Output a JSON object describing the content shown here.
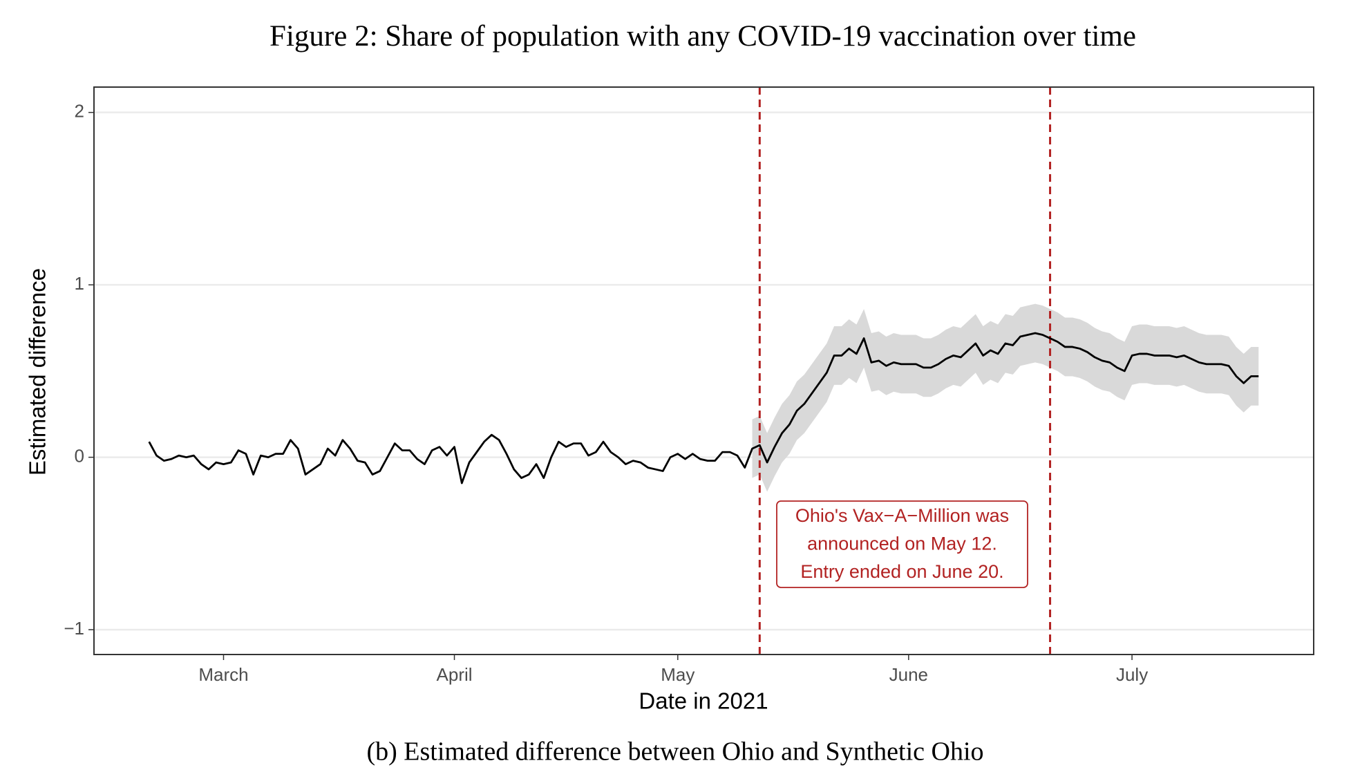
{
  "chart_data": {
    "type": "line",
    "title": "Figure 2: Share of population with any COVID-19 vaccination over time",
    "caption": "(b) Estimated difference between Ohio and Synthetic Ohio",
    "xlabel": "Date in 2021",
    "ylabel": "Estimated difference",
    "xlim": [
      42.6,
      206.4
    ],
    "ylim": [
      -1.144,
      2.147
    ],
    "xticks": [
      {
        "value": 60,
        "label": "March"
      },
      {
        "value": 91,
        "label": "April"
      },
      {
        "value": 121,
        "label": "May"
      },
      {
        "value": 152,
        "label": "June"
      },
      {
        "value": 182,
        "label": "July"
      }
    ],
    "yticks": [
      {
        "value": -1,
        "label": "−1"
      },
      0,
      1,
      2
    ],
    "grid": true,
    "color": "#000000",
    "band_color": "#d9d9d9",
    "vlines": [
      132,
      171
    ],
    "vline_color": "#b22222",
    "annotation": [
      "Ohio's Vax−A−Million was",
      "announced on May 12.",
      "Entry ended on June 20."
    ],
    "x": [
      50,
      51,
      52,
      53,
      54,
      55,
      56,
      57,
      58,
      59,
      60,
      61,
      62,
      63,
      64,
      65,
      66,
      67,
      68,
      69,
      70,
      71,
      72,
      73,
      74,
      75,
      76,
      77,
      78,
      79,
      80,
      81,
      82,
      83,
      84,
      85,
      86,
      87,
      88,
      89,
      90,
      91,
      92,
      93,
      94,
      95,
      96,
      97,
      98,
      99,
      100,
      101,
      102,
      103,
      104,
      105,
      106,
      107,
      108,
      109,
      110,
      111,
      112,
      113,
      114,
      115,
      116,
      117,
      118,
      119,
      120,
      121,
      122,
      123,
      124,
      125,
      126,
      127,
      128,
      129,
      130,
      131,
      132,
      133,
      134,
      135,
      136,
      137,
      138,
      139,
      140,
      141,
      142,
      143,
      144,
      145,
      146,
      147,
      148,
      149,
      150,
      151,
      152,
      153,
      154,
      155,
      156,
      157,
      158,
      159,
      160,
      161,
      162,
      163,
      164,
      165,
      166,
      167,
      168,
      169,
      170,
      171,
      172,
      173,
      174,
      175,
      176,
      177,
      178,
      179,
      180,
      181,
      182,
      183,
      184,
      185,
      186,
      187,
      188,
      189,
      190,
      191,
      192,
      193,
      194,
      195,
      196,
      197,
      198,
      199
    ],
    "values": [
      0.09,
      0.01,
      -0.02,
      -0.01,
      0.01,
      0.0,
      0.01,
      -0.04,
      -0.07,
      -0.03,
      -0.04,
      -0.03,
      0.04,
      0.02,
      -0.1,
      0.01,
      0.0,
      0.02,
      0.02,
      0.1,
      0.05,
      -0.1,
      -0.07,
      -0.04,
      0.05,
      0.01,
      0.1,
      0.05,
      -0.02,
      -0.03,
      -0.1,
      -0.08,
      0.0,
      0.08,
      0.04,
      0.04,
      -0.01,
      -0.04,
      0.04,
      0.06,
      0.01,
      0.06,
      -0.15,
      -0.03,
      0.03,
      0.09,
      0.13,
      0.1,
      0.02,
      -0.07,
      -0.12,
      -0.1,
      -0.04,
      -0.12,
      0.0,
      0.09,
      0.06,
      0.08,
      0.08,
      0.01,
      0.03,
      0.09,
      0.03,
      0.0,
      -0.04,
      -0.02,
      -0.03,
      -0.06,
      -0.07,
      -0.08,
      0.0,
      0.02,
      -0.01,
      0.02,
      -0.01,
      -0.02,
      -0.02,
      0.03,
      0.03,
      0.01,
      -0.06,
      0.05,
      0.07,
      -0.03,
      0.06,
      0.14,
      0.19,
      0.27,
      0.31,
      0.37,
      0.43,
      0.49,
      0.59,
      0.59,
      0.63,
      0.6,
      0.69,
      0.55,
      0.56,
      0.53,
      0.55,
      0.54,
      0.54,
      0.54,
      0.52,
      0.52,
      0.54,
      0.57,
      0.59,
      0.58,
      0.62,
      0.66,
      0.59,
      0.62,
      0.6,
      0.66,
      0.65,
      0.7,
      0.71,
      0.72,
      0.71,
      0.69,
      0.67,
      0.64,
      0.64,
      0.63,
      0.61,
      0.58,
      0.56,
      0.55,
      0.52,
      0.5,
      0.59,
      0.6,
      0.6,
      0.59,
      0.59,
      0.59,
      0.58,
      0.59,
      0.57,
      0.55,
      0.54,
      0.54,
      0.54,
      0.53,
      0.47,
      0.43,
      0.47,
      0.47
    ],
    "lower": [
      null,
      null,
      null,
      null,
      null,
      null,
      null,
      null,
      null,
      null,
      null,
      null,
      null,
      null,
      null,
      null,
      null,
      null,
      null,
      null,
      null,
      null,
      null,
      null,
      null,
      null,
      null,
      null,
      null,
      null,
      null,
      null,
      null,
      null,
      null,
      null,
      null,
      null,
      null,
      null,
      null,
      null,
      null,
      null,
      null,
      null,
      null,
      null,
      null,
      null,
      null,
      null,
      null,
      null,
      null,
      null,
      null,
      null,
      null,
      null,
      null,
      null,
      null,
      null,
      null,
      null,
      null,
      null,
      null,
      null,
      null,
      null,
      null,
      null,
      null,
      null,
      null,
      null,
      null,
      null,
      null,
      -0.12,
      -0.1,
      -0.2,
      -0.11,
      -0.03,
      0.02,
      0.1,
      0.14,
      0.2,
      0.26,
      0.32,
      0.42,
      0.42,
      0.46,
      0.43,
      0.52,
      0.38,
      0.39,
      0.36,
      0.38,
      0.37,
      0.37,
      0.37,
      0.35,
      0.35,
      0.37,
      0.4,
      0.42,
      0.41,
      0.45,
      0.49,
      0.42,
      0.45,
      0.43,
      0.49,
      0.48,
      0.53,
      0.54,
      0.55,
      0.54,
      0.52,
      0.5,
      0.47,
      0.47,
      0.46,
      0.44,
      0.41,
      0.39,
      0.38,
      0.35,
      0.33,
      0.42,
      0.43,
      0.43,
      0.42,
      0.42,
      0.42,
      0.41,
      0.42,
      0.4,
      0.38,
      0.37,
      0.37,
      0.37,
      0.36,
      0.3,
      0.26,
      0.3,
      0.3
    ],
    "upper": [
      null,
      null,
      null,
      null,
      null,
      null,
      null,
      null,
      null,
      null,
      null,
      null,
      null,
      null,
      null,
      null,
      null,
      null,
      null,
      null,
      null,
      null,
      null,
      null,
      null,
      null,
      null,
      null,
      null,
      null,
      null,
      null,
      null,
      null,
      null,
      null,
      null,
      null,
      null,
      null,
      null,
      null,
      null,
      null,
      null,
      null,
      null,
      null,
      null,
      null,
      null,
      null,
      null,
      null,
      null,
      null,
      null,
      null,
      null,
      null,
      null,
      null,
      null,
      null,
      null,
      null,
      null,
      null,
      null,
      null,
      null,
      null,
      null,
      null,
      null,
      null,
      null,
      null,
      null,
      null,
      null,
      0.22,
      0.24,
      0.14,
      0.23,
      0.31,
      0.36,
      0.44,
      0.48,
      0.54,
      0.6,
      0.66,
      0.76,
      0.76,
      0.8,
      0.77,
      0.86,
      0.72,
      0.73,
      0.7,
      0.72,
      0.71,
      0.71,
      0.71,
      0.69,
      0.69,
      0.71,
      0.74,
      0.76,
      0.75,
      0.79,
      0.83,
      0.76,
      0.79,
      0.77,
      0.83,
      0.82,
      0.87,
      0.88,
      0.89,
      0.88,
      0.86,
      0.84,
      0.81,
      0.81,
      0.8,
      0.78,
      0.75,
      0.73,
      0.72,
      0.69,
      0.67,
      0.76,
      0.77,
      0.77,
      0.76,
      0.76,
      0.76,
      0.75,
      0.76,
      0.74,
      0.72,
      0.71,
      0.71,
      0.71,
      0.7,
      0.64,
      0.6,
      0.64,
      0.64
    ]
  }
}
